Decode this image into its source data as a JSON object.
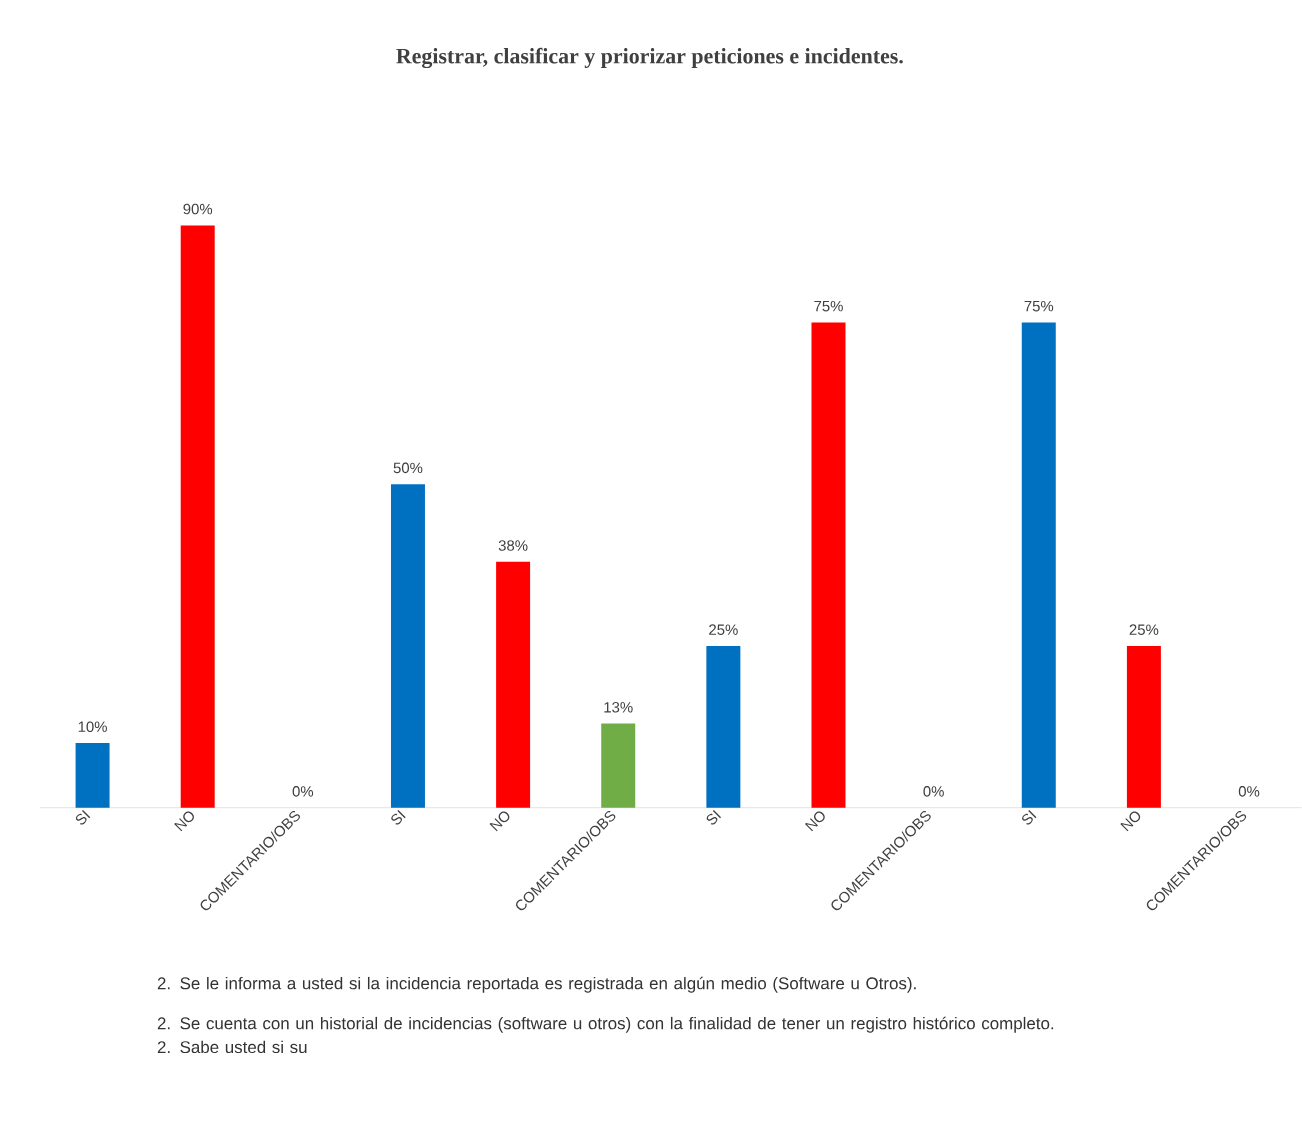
{
  "chart_data": {
    "type": "bar",
    "title": "Registrar, clasificar  y priorizar peticiones e incidentes.",
    "categories": [
      "SI",
      "NO",
      "COMENTARIO/OBS",
      "SI",
      "NO",
      "COMENTARIO/OBS",
      "SI",
      "NO",
      "COMENTARIO/OBS",
      "SI",
      "NO",
      "COMENTARIO/OBS"
    ],
    "values": [
      10,
      90,
      0,
      50,
      38,
      13,
      25,
      75,
      0,
      75,
      25,
      0
    ],
    "colors": [
      "#0070c0",
      "#ff0000",
      "#70ad47",
      "#0070c0",
      "#ff0000",
      "#70ad47",
      "#0070c0",
      "#ff0000",
      "#70ad47",
      "#0070c0",
      "#ff0000",
      "#70ad47"
    ],
    "value_labels": [
      "10%",
      "90%",
      "0%",
      "50%",
      "38%",
      "13%",
      "25%",
      "75%",
      "0%",
      "75%",
      "25%",
      "0%"
    ],
    "tick_labels": "x",
    "grid": false,
    "annotations": [
      "2. Se le informa a usted si la incidencia reportada es registrada en algún medio (Software u Otros).",
      "2. Se cuenta con un historial de incidencias (software u otros) con la finalidad de tener un registro histórico completo.",
      "2. Sabe usted si su"
    ]
  }
}
